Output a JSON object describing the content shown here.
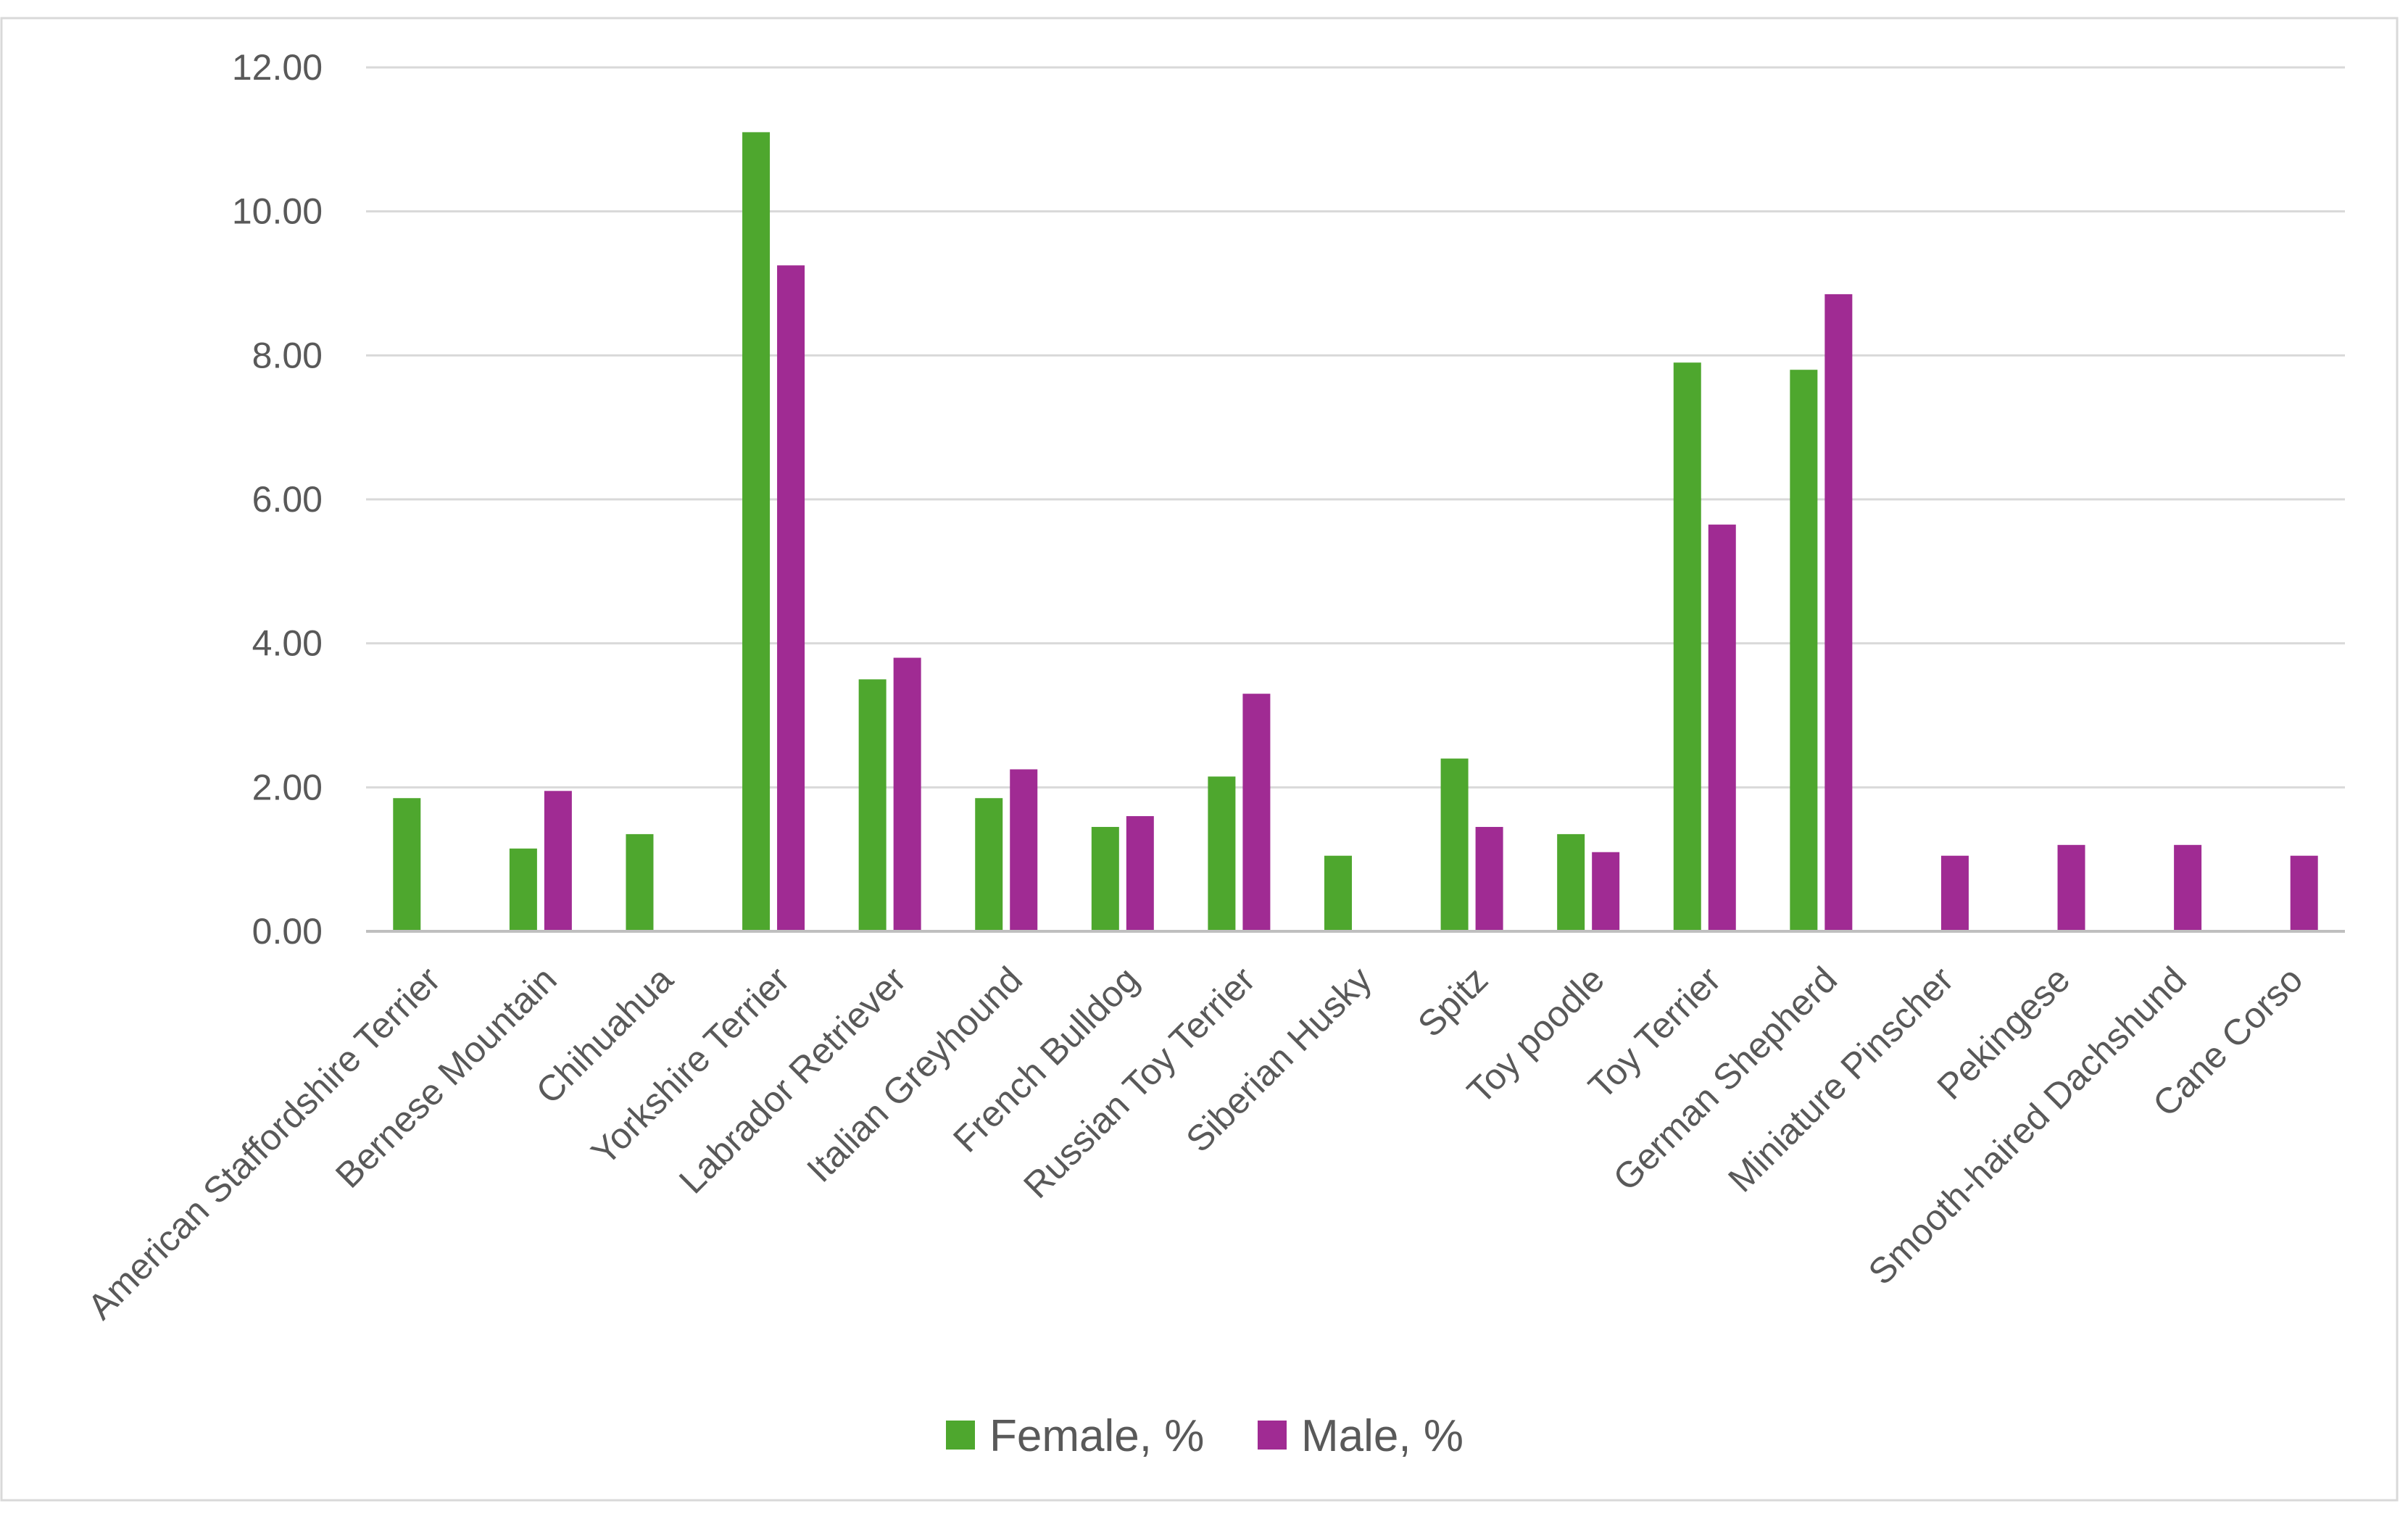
{
  "chart_data": {
    "type": "bar",
    "title": "",
    "xlabel": "",
    "ylabel": "",
    "ylim": [
      0,
      12
    ],
    "yticks": [
      "0.00",
      "2.00",
      "4.00",
      "6.00",
      "8.00",
      "10.00",
      "12.00"
    ],
    "ytick_values": [
      0,
      2,
      4,
      6,
      8,
      10,
      12
    ],
    "grid": true,
    "legend_position": "bottom",
    "categories": [
      "American Staffordshire Terrier",
      "Bernese Mountain",
      "Chihuahua",
      "Yorkshire Terrier",
      "Labrador Retriever",
      "Italian Greyhound",
      "French Bulldog",
      "Russian Toy Terrier",
      "Siberian Husky",
      "Spitz",
      "Toy poodle",
      "Toy Terrier",
      "German Shepherd",
      "Miniature Pinscher",
      "Pekingese",
      "Smooth-haired Dachshund",
      "Cane Corso"
    ],
    "series": [
      {
        "name": "Female, %",
        "color": "#4ea72e",
        "values": [
          1.85,
          1.15,
          1.35,
          11.1,
          3.5,
          1.85,
          1.45,
          2.15,
          1.05,
          2.4,
          1.35,
          7.9,
          7.8,
          null,
          null,
          null,
          null
        ]
      },
      {
        "name": "Male, %",
        "color": "#a02b93",
        "values": [
          null,
          1.95,
          null,
          9.25,
          3.8,
          2.25,
          1.6,
          3.3,
          null,
          1.45,
          1.1,
          5.65,
          8.85,
          1.05,
          1.2,
          1.2,
          1.05
        ]
      }
    ]
  }
}
